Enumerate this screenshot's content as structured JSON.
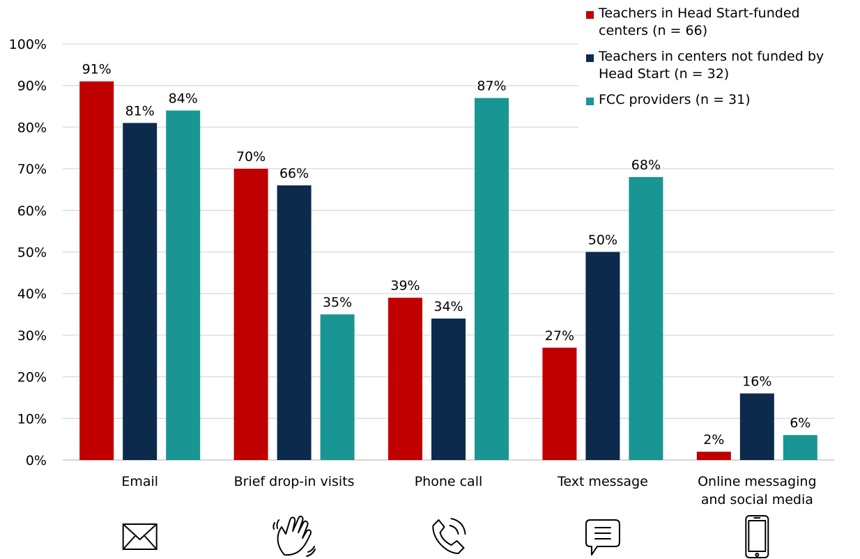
{
  "chart_data": {
    "type": "bar",
    "categories": [
      [
        "Email"
      ],
      [
        "Brief drop-in visits"
      ],
      [
        "Phone call"
      ],
      [
        "Text message"
      ],
      [
        "Online messaging",
        "and social media"
      ]
    ],
    "category_icons": [
      "envelope-icon",
      "waving-hand-icon",
      "phone-call-icon",
      "message-bubble-icon",
      "smartphone-icon"
    ],
    "series": [
      {
        "name": [
          "Teachers in Head Start-funded",
          "centers (n = 66)"
        ],
        "color": "#c00000",
        "values": [
          91,
          70,
          39,
          27,
          2
        ]
      },
      {
        "name": [
          "Teachers in centers not funded by",
          "Head Start (n = 32)"
        ],
        "color": "#0c2a4c",
        "values": [
          81,
          66,
          34,
          50,
          16
        ]
      },
      {
        "name": [
          "FCC providers (n = 31)"
        ],
        "color": "#199693",
        "values": [
          84,
          35,
          87,
          68,
          6
        ]
      }
    ],
    "ylim": [
      0,
      100
    ],
    "yticks": [
      "0%",
      "10%",
      "20%",
      "30%",
      "40%",
      "50%",
      "60%",
      "70%",
      "80%",
      "90%",
      "100%"
    ],
    "value_suffix": "%",
    "grid": true,
    "legend_position": "top-right"
  }
}
